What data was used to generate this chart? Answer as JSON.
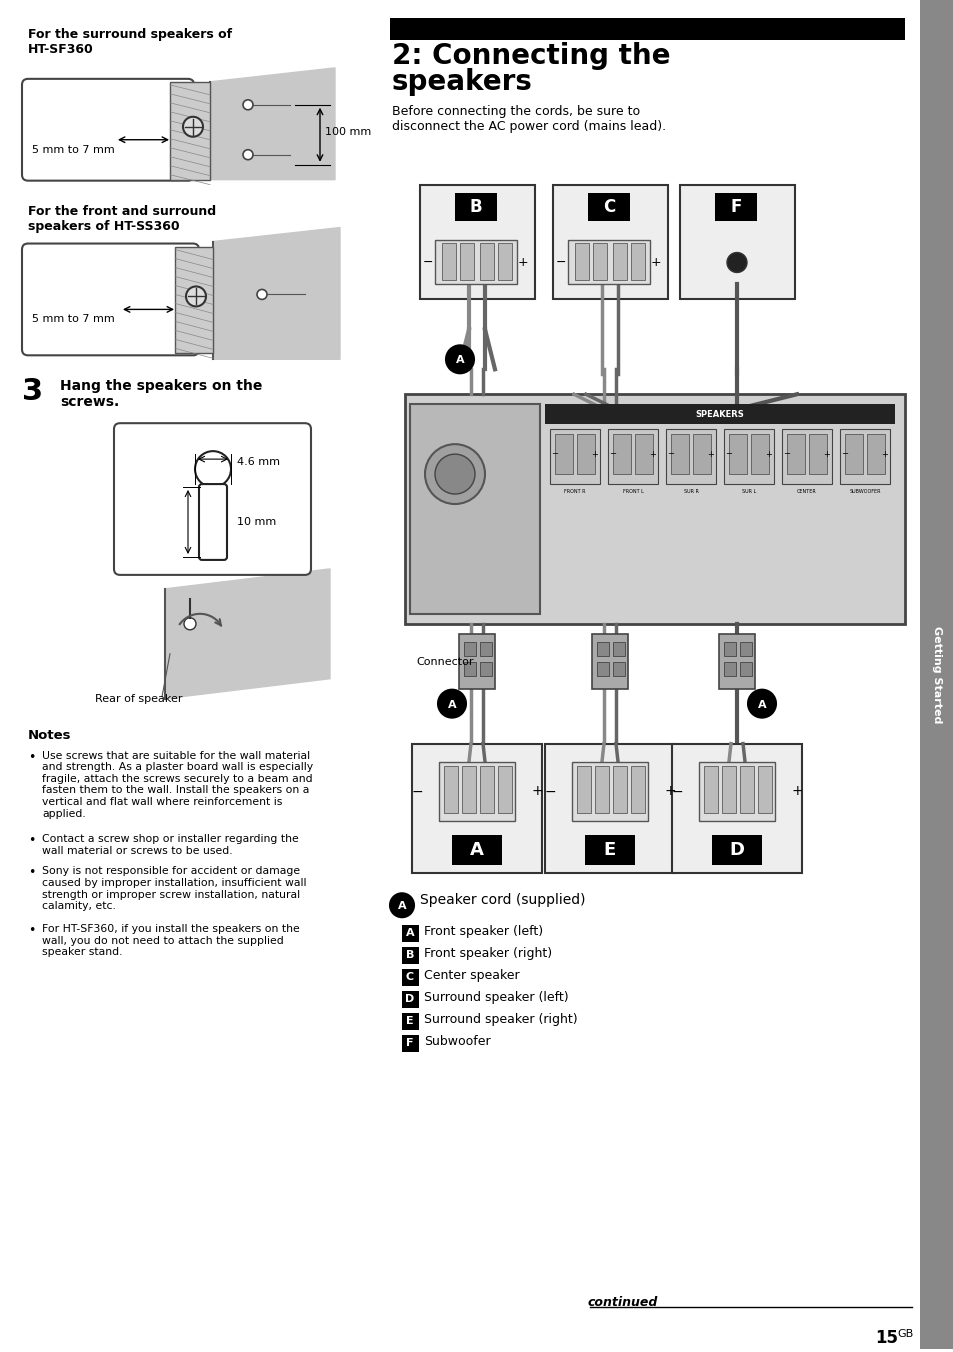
{
  "page_bg": "#ffffff",
  "sidebar_color": "#888888",
  "black": "#000000",
  "title_bar_color": "#000000",
  "title_text": "2: Connecting the\nspeakers",
  "section_header1": "For the surround speakers of\nHT-SF360",
  "section_header2": "For the front and surround\nspeakers of HT-SS360",
  "step3_num": "3",
  "step3_text": "Hang the speakers on the\nscrews.",
  "dim1": "5 mm to 7 mm",
  "dim2": "100 mm",
  "dim3": "5 mm to 7 mm",
  "dim4": "4.6 mm",
  "dim5": "10 mm",
  "rear_label": "Rear of speaker",
  "connector_label": "Connector",
  "notes_title": "Notes",
  "note1": "Use screws that are suitable for the wall material\nand strength. As a plaster board wall is especially\nfragile, attach the screws securely to a beam and\nfasten them to the wall. Install the speakers on a\nvertical and flat wall where reinforcement is\napplied.",
  "note2": "Contact a screw shop or installer regarding the\nwall material or screws to be used.",
  "note3": "Sony is not responsible for accident or damage\ncaused by improper installation, insufficient wall\nstrength or improper screw installation, natural\ncalamity, etc.",
  "note4": "For HT-SF360, if you install the speakers on the\nwall, you do not need to attach the supplied\nspeaker stand.",
  "intro_text": "Before connecting the cords, be sure to\ndisconnect the AC power cord (mains lead).",
  "legend_a_circ": "Speaker cord (supplied)",
  "legend_A": "Front speaker (left)",
  "legend_B": "Front speaker (right)",
  "legend_C": "Center speaker",
  "legend_D": "Surround speaker (left)",
  "legend_E": "Surround speaker (right)",
  "legend_F": "Subwoofer",
  "continued_text": "continued",
  "page_num": "15",
  "page_suffix": "GB",
  "sidebar_text": "Getting Started"
}
